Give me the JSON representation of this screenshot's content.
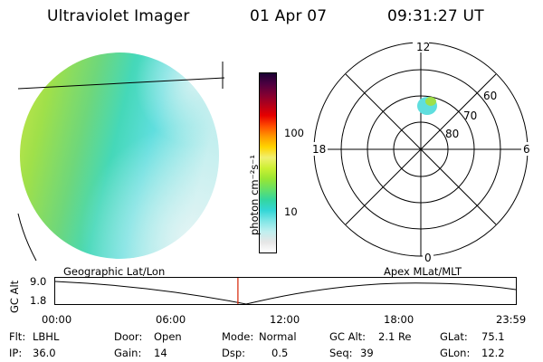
{
  "header": {
    "title": "Ultraviolet Imager",
    "date": "01 Apr 07",
    "time": "09:31:27 UT"
  },
  "colorbar": {
    "label": "photon cm⁻²s⁻¹",
    "ticks": [
      "100",
      "10"
    ],
    "colors": [
      "#ffffff",
      "#e6e6e6",
      "#bfefef",
      "#7fe6e6",
      "#33d6d6",
      "#33d69f",
      "#66e066",
      "#99e633",
      "#ccf033",
      "#f0f070",
      "#ffd400",
      "#ff9900",
      "#ff4d00",
      "#e60000",
      "#b3001a",
      "#800033",
      "#4d0040",
      "#1a0033"
    ]
  },
  "polar_plot": {
    "clock_labels": [
      "12",
      "18",
      "6",
      "0"
    ],
    "lat_labels": [
      "60",
      "70",
      "80"
    ]
  },
  "timeline": {
    "left_title": "Geographic Lat/Lon",
    "right_title": "Apex MLat/MLT",
    "y_axis_label": "GC Alt",
    "y_top": "9.0",
    "y_bottom": "1.8",
    "x_ticks": [
      "00:00",
      "06:00",
      "12:00",
      "18:00",
      "23:59"
    ],
    "marker_time_hours": 9.52
  },
  "info": {
    "flt_label": "Flt:",
    "flt_value": "LBHL",
    "ip_label": "IP:",
    "ip_value": "36.0",
    "door_label": "Door:",
    "door_value": "Open",
    "gain_label": "Gain:",
    "gain_value": "14",
    "mode_label": "Mode:",
    "mode_value": "Normal",
    "dsp_label": "Dsp:",
    "dsp_value": "0.5",
    "gcalt_label": "GC Alt:",
    "gcalt_value": "2.1 Re",
    "seq_label": "Seq:",
    "seq_value": "39",
    "glat_label": "GLat:",
    "glat_value": "75.1",
    "glon_label": "GLon:",
    "glon_value": "12.2"
  }
}
